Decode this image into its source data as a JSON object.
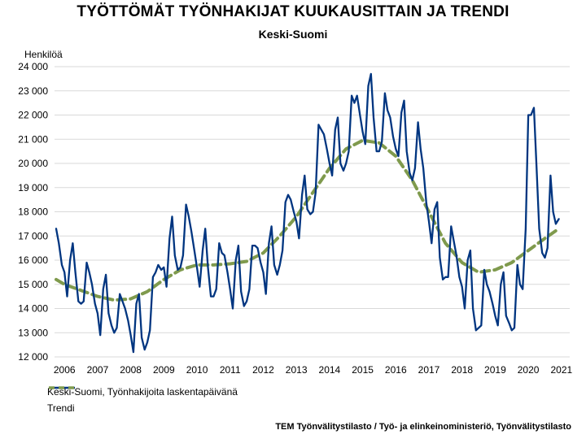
{
  "title": "TYÖTTÖMÄT TYÖNHAKIJAT KUUKAUSITTAIN JA TRENDI",
  "subtitle": "Keski-Suomi",
  "source": "TEM Työnvälitystilasto / Työ- ja elinkeinoministeriö, Työnvälitystilasto",
  "colors": {
    "series": "#003580",
    "trend": "#7f9a4d"
  },
  "chart_data": {
    "type": "line",
    "title": "TYÖTTÖMÄT TYÖNHAKIJAT KUUKAUSITTAIN JA TRENDI",
    "subtitle": "Keski-Suomi",
    "ylabel": "Henkilöä",
    "xlabel": "",
    "ylim": [
      12000,
      24000
    ],
    "xlim": [
      2005.7,
      2021.25
    ],
    "yticks": [
      12000,
      13000,
      14000,
      15000,
      16000,
      17000,
      18000,
      19000,
      20000,
      21000,
      22000,
      23000,
      24000
    ],
    "ytick_labels": [
      "12 000",
      "13 000",
      "14 000",
      "15 000",
      "16 000",
      "17 000",
      "18 000",
      "19 000",
      "20 000",
      "21 000",
      "22 000",
      "23 000",
      "24 000"
    ],
    "xticks": [
      2006,
      2007,
      2008,
      2009,
      2010,
      2011,
      2012,
      2013,
      2014,
      2015,
      2016,
      2017,
      2018,
      2019,
      2020,
      2021
    ],
    "xtick_labels": [
      "2006",
      "2007",
      "2008",
      "2009",
      "2010",
      "2011",
      "2012",
      "2013",
      "2014",
      "2015",
      "2016",
      "2017",
      "2018",
      "2019",
      "2020",
      "2021"
    ],
    "grid": true,
    "legend": "bottom-left",
    "series": [
      {
        "name": "Keski-Suomi, Työnhakijoita laskentapäivänä",
        "style": "solid",
        "points": [
          [
            2005.75,
            17300
          ],
          [
            2005.83,
            16700
          ],
          [
            2005.92,
            15800
          ],
          [
            2006.0,
            15500
          ],
          [
            2006.08,
            14500
          ],
          [
            2006.17,
            16000
          ],
          [
            2006.25,
            16700
          ],
          [
            2006.33,
            15500
          ],
          [
            2006.42,
            14300
          ],
          [
            2006.5,
            14200
          ],
          [
            2006.58,
            14300
          ],
          [
            2006.67,
            15900
          ],
          [
            2006.75,
            15500
          ],
          [
            2006.83,
            15000
          ],
          [
            2006.92,
            14200
          ],
          [
            2007.0,
            13800
          ],
          [
            2007.08,
            12900
          ],
          [
            2007.17,
            14800
          ],
          [
            2007.25,
            15400
          ],
          [
            2007.33,
            13800
          ],
          [
            2007.42,
            13300
          ],
          [
            2007.5,
            13000
          ],
          [
            2007.58,
            13200
          ],
          [
            2007.67,
            14600
          ],
          [
            2007.75,
            14300
          ],
          [
            2007.83,
            14000
          ],
          [
            2007.92,
            13500
          ],
          [
            2008.0,
            12900
          ],
          [
            2008.08,
            12200
          ],
          [
            2008.17,
            14200
          ],
          [
            2008.25,
            14600
          ],
          [
            2008.33,
            12800
          ],
          [
            2008.42,
            12300
          ],
          [
            2008.5,
            12600
          ],
          [
            2008.58,
            13100
          ],
          [
            2008.67,
            15300
          ],
          [
            2008.75,
            15500
          ],
          [
            2008.83,
            15800
          ],
          [
            2008.92,
            15600
          ],
          [
            2009.0,
            15700
          ],
          [
            2009.08,
            14900
          ],
          [
            2009.17,
            16900
          ],
          [
            2009.25,
            17800
          ],
          [
            2009.33,
            16200
          ],
          [
            2009.42,
            15600
          ],
          [
            2009.5,
            15700
          ],
          [
            2009.58,
            16200
          ],
          [
            2009.67,
            18300
          ],
          [
            2009.75,
            17800
          ],
          [
            2009.83,
            17200
          ],
          [
            2009.92,
            16400
          ],
          [
            2010.0,
            15700
          ],
          [
            2010.08,
            14900
          ],
          [
            2010.17,
            16400
          ],
          [
            2010.25,
            17300
          ],
          [
            2010.33,
            15700
          ],
          [
            2010.42,
            14500
          ],
          [
            2010.5,
            14500
          ],
          [
            2010.58,
            14800
          ],
          [
            2010.67,
            16700
          ],
          [
            2010.75,
            16300
          ],
          [
            2010.83,
            16200
          ],
          [
            2010.92,
            15500
          ],
          [
            2011.0,
            14800
          ],
          [
            2011.08,
            14000
          ],
          [
            2011.17,
            16000
          ],
          [
            2011.25,
            16600
          ],
          [
            2011.33,
            14700
          ],
          [
            2011.42,
            14100
          ],
          [
            2011.5,
            14300
          ],
          [
            2011.58,
            14800
          ],
          [
            2011.67,
            16600
          ],
          [
            2011.75,
            16600
          ],
          [
            2011.83,
            16500
          ],
          [
            2011.92,
            15900
          ],
          [
            2012.0,
            15500
          ],
          [
            2012.08,
            14600
          ],
          [
            2012.17,
            16700
          ],
          [
            2012.25,
            17400
          ],
          [
            2012.33,
            15800
          ],
          [
            2012.42,
            15400
          ],
          [
            2012.5,
            15800
          ],
          [
            2012.58,
            16400
          ],
          [
            2012.67,
            18400
          ],
          [
            2012.75,
            18700
          ],
          [
            2012.83,
            18500
          ],
          [
            2012.92,
            18000
          ],
          [
            2013.0,
            17600
          ],
          [
            2013.08,
            16900
          ],
          [
            2013.17,
            18700
          ],
          [
            2013.25,
            19500
          ],
          [
            2013.33,
            18100
          ],
          [
            2013.42,
            17900
          ],
          [
            2013.5,
            18000
          ],
          [
            2013.58,
            18800
          ],
          [
            2013.67,
            21600
          ],
          [
            2013.75,
            21400
          ],
          [
            2013.83,
            21200
          ],
          [
            2013.92,
            20600
          ],
          [
            2014.0,
            20000
          ],
          [
            2014.08,
            19500
          ],
          [
            2014.17,
            21400
          ],
          [
            2014.25,
            21900
          ],
          [
            2014.33,
            20000
          ],
          [
            2014.42,
            19700
          ],
          [
            2014.5,
            20000
          ],
          [
            2014.58,
            20500
          ],
          [
            2014.67,
            22800
          ],
          [
            2014.75,
            22500
          ],
          [
            2014.83,
            22800
          ],
          [
            2014.92,
            22000
          ],
          [
            2015.0,
            21300
          ],
          [
            2015.08,
            20800
          ],
          [
            2015.17,
            23200
          ],
          [
            2015.25,
            23700
          ],
          [
            2015.33,
            21900
          ],
          [
            2015.42,
            20500
          ],
          [
            2015.5,
            20500
          ],
          [
            2015.58,
            20900
          ],
          [
            2015.67,
            22900
          ],
          [
            2015.75,
            22200
          ],
          [
            2015.83,
            21900
          ],
          [
            2015.92,
            21100
          ],
          [
            2016.0,
            20600
          ],
          [
            2016.08,
            20300
          ],
          [
            2016.17,
            22100
          ],
          [
            2016.25,
            22600
          ],
          [
            2016.33,
            20500
          ],
          [
            2016.42,
            19600
          ],
          [
            2016.5,
            19300
          ],
          [
            2016.58,
            19800
          ],
          [
            2016.67,
            21700
          ],
          [
            2016.75,
            20600
          ],
          [
            2016.83,
            19800
          ],
          [
            2016.92,
            18400
          ],
          [
            2017.0,
            17600
          ],
          [
            2017.08,
            16700
          ],
          [
            2017.17,
            18100
          ],
          [
            2017.25,
            18400
          ],
          [
            2017.33,
            16100
          ],
          [
            2017.42,
            15200
          ],
          [
            2017.5,
            15300
          ],
          [
            2017.58,
            15300
          ],
          [
            2017.67,
            17400
          ],
          [
            2017.75,
            16800
          ],
          [
            2017.83,
            16200
          ],
          [
            2017.92,
            15300
          ],
          [
            2018.0,
            14900
          ],
          [
            2018.08,
            14000
          ],
          [
            2018.17,
            16000
          ],
          [
            2018.25,
            16400
          ],
          [
            2018.33,
            14000
          ],
          [
            2018.42,
            13100
          ],
          [
            2018.5,
            13200
          ],
          [
            2018.58,
            13300
          ],
          [
            2018.67,
            15600
          ],
          [
            2018.75,
            15000
          ],
          [
            2018.83,
            14700
          ],
          [
            2018.92,
            14200
          ],
          [
            2019.0,
            13700
          ],
          [
            2019.08,
            13300
          ],
          [
            2019.17,
            15000
          ],
          [
            2019.25,
            15500
          ],
          [
            2019.33,
            13700
          ],
          [
            2019.42,
            13400
          ],
          [
            2019.5,
            13100
          ],
          [
            2019.58,
            13200
          ],
          [
            2019.67,
            15800
          ],
          [
            2019.75,
            15000
          ],
          [
            2019.83,
            14800
          ],
          [
            2019.92,
            17300
          ],
          [
            2020.0,
            22000
          ],
          [
            2020.08,
            22000
          ],
          [
            2020.17,
            22300
          ],
          [
            2020.25,
            19800
          ],
          [
            2020.33,
            17300
          ],
          [
            2020.42,
            16300
          ],
          [
            2020.5,
            16100
          ],
          [
            2020.58,
            16500
          ],
          [
            2020.67,
            19500
          ],
          [
            2020.75,
            18000
          ],
          [
            2020.83,
            17500
          ],
          [
            2020.92,
            17700
          ]
        ]
      },
      {
        "name": "Trendi",
        "style": "dashed",
        "points": [
          [
            2005.75,
            15200
          ],
          [
            2006.0,
            15000
          ],
          [
            2006.5,
            14750
          ],
          [
            2007.0,
            14500
          ],
          [
            2007.5,
            14350
          ],
          [
            2008.0,
            14400
          ],
          [
            2008.5,
            14700
          ],
          [
            2009.0,
            15200
          ],
          [
            2009.5,
            15600
          ],
          [
            2010.0,
            15800
          ],
          [
            2010.5,
            15800
          ],
          [
            2011.0,
            15850
          ],
          [
            2011.5,
            15950
          ],
          [
            2012.0,
            16300
          ],
          [
            2012.5,
            17000
          ],
          [
            2013.0,
            17800
          ],
          [
            2013.5,
            18800
          ],
          [
            2014.0,
            19800
          ],
          [
            2014.5,
            20600
          ],
          [
            2015.0,
            20950
          ],
          [
            2015.5,
            20850
          ],
          [
            2016.0,
            20300
          ],
          [
            2016.5,
            19300
          ],
          [
            2017.0,
            18000
          ],
          [
            2017.5,
            16700
          ],
          [
            2018.0,
            15900
          ],
          [
            2018.5,
            15500
          ],
          [
            2019.0,
            15600
          ],
          [
            2019.5,
            15900
          ],
          [
            2020.0,
            16400
          ],
          [
            2020.5,
            16900
          ],
          [
            2020.92,
            17300
          ]
        ]
      }
    ]
  }
}
